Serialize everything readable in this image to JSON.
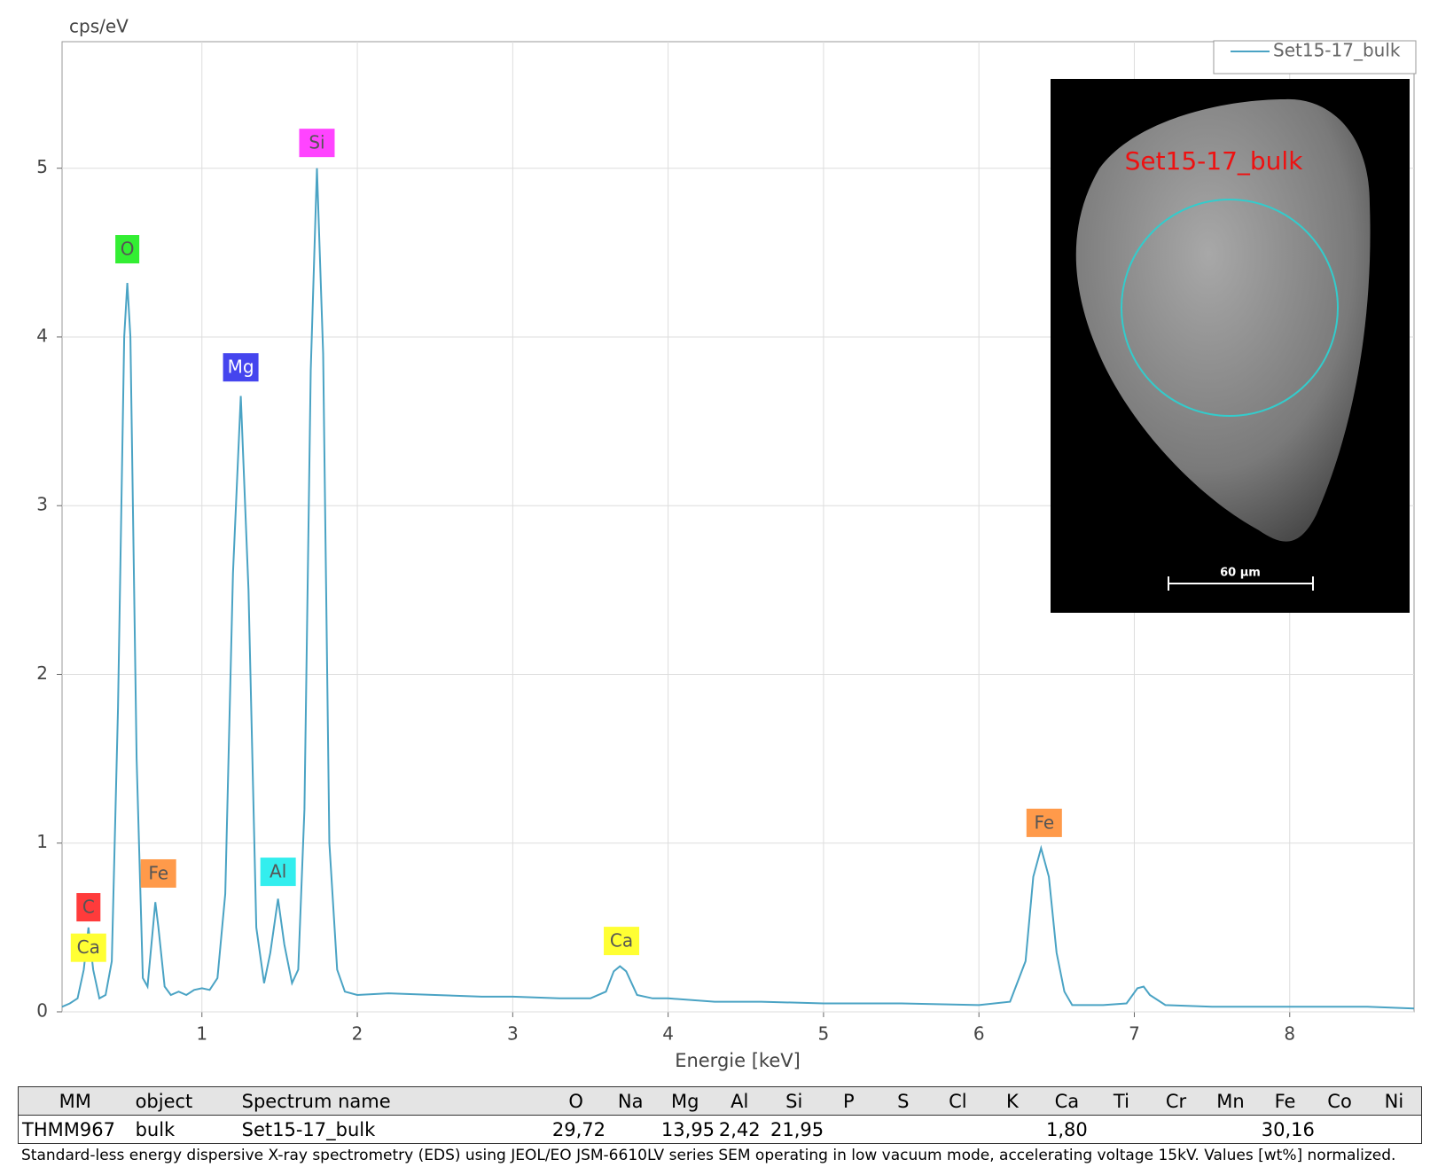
{
  "chart_data": {
    "type": "line",
    "y_label": "cps/eV",
    "x_label": "Energie [keV]",
    "xlim": [
      0.1,
      8.8
    ],
    "ylim": [
      0,
      5.75
    ],
    "xticks": [
      1,
      2,
      3,
      4,
      5,
      6,
      7,
      8
    ],
    "yticks": [
      0,
      1,
      2,
      3,
      4,
      5
    ],
    "grid": true,
    "series": [
      {
        "name": "Set15-17_bulk",
        "color": "#4aa3c4",
        "x": [
          0.1,
          0.15,
          0.2,
          0.24,
          0.27,
          0.3,
          0.34,
          0.38,
          0.42,
          0.46,
          0.5,
          0.52,
          0.54,
          0.58,
          0.62,
          0.65,
          0.68,
          0.7,
          0.72,
          0.76,
          0.8,
          0.85,
          0.9,
          0.95,
          1.0,
          1.05,
          1.1,
          1.15,
          1.2,
          1.25,
          1.3,
          1.35,
          1.4,
          1.44,
          1.49,
          1.53,
          1.58,
          1.62,
          1.66,
          1.7,
          1.74,
          1.78,
          1.82,
          1.87,
          1.92,
          2.0,
          2.2,
          2.5,
          2.8,
          3.0,
          3.3,
          3.5,
          3.6,
          3.65,
          3.69,
          3.73,
          3.8,
          3.9,
          4.0,
          4.3,
          4.6,
          5.0,
          5.5,
          6.0,
          6.2,
          6.3,
          6.35,
          6.4,
          6.45,
          6.5,
          6.55,
          6.6,
          6.8,
          6.95,
          7.02,
          7.06,
          7.1,
          7.2,
          7.5,
          8.0,
          8.5,
          8.8
        ],
        "values": [
          0.03,
          0.05,
          0.08,
          0.25,
          0.5,
          0.25,
          0.08,
          0.1,
          0.3,
          1.8,
          4.0,
          4.32,
          4.0,
          1.5,
          0.2,
          0.15,
          0.45,
          0.65,
          0.5,
          0.15,
          0.1,
          0.12,
          0.1,
          0.13,
          0.14,
          0.13,
          0.2,
          0.7,
          2.6,
          3.65,
          2.5,
          0.5,
          0.17,
          0.35,
          0.67,
          0.4,
          0.17,
          0.25,
          1.2,
          3.8,
          5.0,
          3.9,
          1.0,
          0.25,
          0.12,
          0.1,
          0.11,
          0.1,
          0.09,
          0.09,
          0.08,
          0.08,
          0.12,
          0.24,
          0.27,
          0.24,
          0.1,
          0.08,
          0.08,
          0.06,
          0.06,
          0.05,
          0.05,
          0.04,
          0.06,
          0.3,
          0.8,
          0.97,
          0.8,
          0.35,
          0.12,
          0.04,
          0.04,
          0.05,
          0.14,
          0.15,
          0.1,
          0.04,
          0.03,
          0.03,
          0.03,
          0.02
        ]
      }
    ],
    "annotations": [
      {
        "text": "C",
        "x": 0.27,
        "y": 0.62,
        "color": "#ff3b3b"
      },
      {
        "text": "Ca",
        "x": 0.27,
        "y": 0.38,
        "color": "#ffff33"
      },
      {
        "text": "O",
        "x": 0.52,
        "y": 4.52,
        "color": "#33ee33"
      },
      {
        "text": "Fe",
        "x": 0.72,
        "y": 0.82,
        "color": "#ff9a4a"
      },
      {
        "text": "Mg",
        "x": 1.25,
        "y": 3.82,
        "color": "#4545ee"
      },
      {
        "text": "Al",
        "x": 1.49,
        "y": 0.83,
        "color": "#33eeee"
      },
      {
        "text": "Si",
        "x": 1.74,
        "y": 5.15,
        "color": "#ff44ff"
      },
      {
        "text": "Ca",
        "x": 3.7,
        "y": 0.42,
        "color": "#ffff33"
      },
      {
        "text": "Fe",
        "x": 6.42,
        "y": 1.12,
        "color": "#ff9a4a"
      }
    ],
    "legend": "top-right"
  },
  "inset": {
    "label": "Set15-17_bulk",
    "scale_bar": "60 µm"
  },
  "table": {
    "header": [
      "MM",
      "object",
      "Spectrum name",
      "O",
      "Na",
      "Mg",
      "Al",
      "Si",
      "P",
      "S",
      "Cl",
      "K",
      "Ca",
      "Ti",
      "Cr",
      "Mn",
      "Fe",
      "Co",
      "Ni"
    ],
    "rows": [
      [
        "THMM967",
        "bulk",
        "Set15-17_bulk",
        "29,72",
        null,
        "13,95",
        "2,42",
        "21,95",
        null,
        null,
        null,
        null,
        "1,80",
        null,
        null,
        null,
        "30,16",
        null,
        null
      ]
    ]
  },
  "note": "Standard-less energy dispersive X-ray spectrometry (EDS) using JEOL/EO JSM-6610LV series SEM operating in low vacuum mode, accelerating voltage 15kV. Values [wt%] normalized."
}
